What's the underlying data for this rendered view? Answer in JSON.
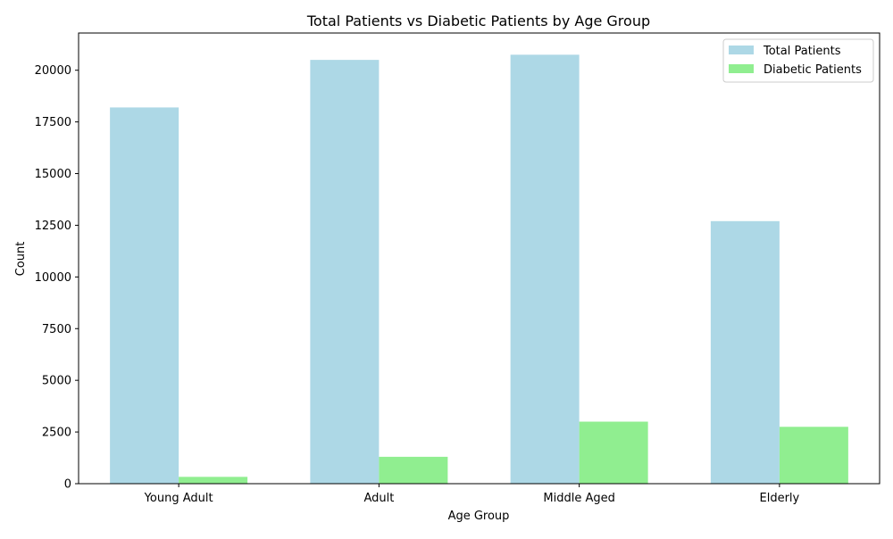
{
  "chart_data": {
    "type": "bar",
    "title": "Total Patients vs Diabetic Patients by Age Group",
    "xlabel": "Age Group",
    "ylabel": "Count",
    "categories": [
      "Young Adult",
      "Adult",
      "Middle Aged",
      "Elderly"
    ],
    "series": [
      {
        "name": "Total Patients",
        "color": "#add8e6",
        "values": [
          18200,
          20500,
          20750,
          12700
        ]
      },
      {
        "name": "Diabetic Patients",
        "color": "#90ee90",
        "values": [
          330,
          1300,
          3000,
          2750
        ]
      }
    ],
    "ylim": [
      0,
      21800
    ],
    "yticks": [
      0,
      2500,
      5000,
      7500,
      10000,
      12500,
      15000,
      17500,
      20000
    ],
    "ytick_labels": [
      "0",
      "2500",
      "5000",
      "7500",
      "10000",
      "12500",
      "15000",
      "17500",
      "20000"
    ],
    "grid": false,
    "legend_position": "upper right"
  }
}
